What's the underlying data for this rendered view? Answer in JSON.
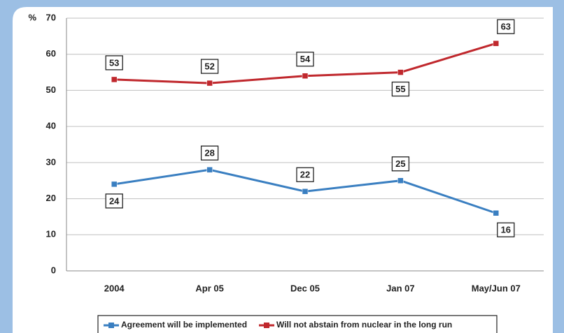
{
  "chart_data": {
    "type": "line",
    "y_label": "%",
    "categories": [
      "2004",
      "Apr 05",
      "Dec 05",
      "Jan 07",
      "May/Jun 07"
    ],
    "series": [
      {
        "name": "Agreement will be implemented",
        "color": "#3a7fc1",
        "values": [
          24,
          28,
          22,
          25,
          16
        ]
      },
      {
        "name": "Will not abstain from nuclear in the long run",
        "color": "#c0282d",
        "values": [
          53,
          52,
          54,
          55,
          63
        ]
      }
    ],
    "ylim": [
      0,
      70
    ],
    "yticks": [
      0,
      10,
      20,
      30,
      40,
      50,
      60,
      70
    ],
    "grid": true,
    "legend": "bottom"
  }
}
